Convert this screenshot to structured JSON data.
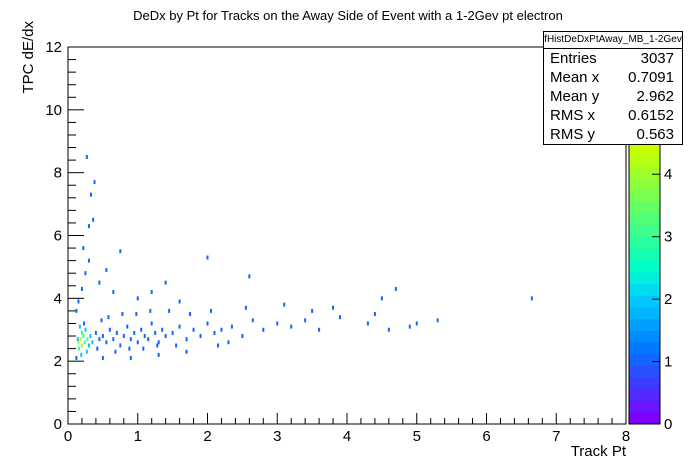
{
  "chart_data": {
    "type": "scatter",
    "title": "DeDx by Pt for Tracks on the Away Side of Event with a 1-2Gev pt electron",
    "xlabel": "Track Pt",
    "ylabel": "TPC dE/dx",
    "xlim": [
      0,
      8
    ],
    "ylim": [
      0,
      12
    ],
    "x_ticks": [
      "0",
      "1",
      "2",
      "3",
      "4",
      "5",
      "6",
      "7",
      "8"
    ],
    "y_ticks": [
      "0",
      "2",
      "4",
      "6",
      "8",
      "10",
      "12"
    ],
    "colorbar": {
      "range": [
        0,
        4.5
      ],
      "ticks": [
        "0",
        "1",
        "2",
        "3",
        "4"
      ],
      "colors": [
        "#7f00ff",
        "#6a14ff",
        "#5528ff",
        "#3c3cff",
        "#2850ff",
        "#1464ff",
        "#0078ff",
        "#008cff",
        "#00a0ff",
        "#00b4ff",
        "#00c8ff",
        "#00dcf0",
        "#00f0dc",
        "#00ffc8",
        "#14ffb4",
        "#28ffa0",
        "#3cff8c",
        "#50ff78",
        "#64ff64",
        "#78ff50",
        "#8cff3c",
        "#a0ff28",
        "#b4ff14",
        "#c8ff00"
      ]
    },
    "stats": {
      "name": "fHistDeDxPtAway_MB_1-2Gev",
      "rows": [
        {
          "label": "Entries",
          "value": "3037"
        },
        {
          "label": "Mean x",
          "value": "0.7091"
        },
        {
          "label": "Mean y",
          "value": "2.962"
        },
        {
          "label": "RMS x",
          "value": "0.6152"
        },
        {
          "label": "RMS y",
          "value": "0.563"
        }
      ]
    },
    "points": [
      [
        0.15,
        2.6,
        4
      ],
      [
        0.18,
        2.7,
        4
      ],
      [
        0.2,
        2.5,
        4
      ],
      [
        0.22,
        2.8,
        3
      ],
      [
        0.24,
        2.6,
        3
      ],
      [
        0.2,
        2.9,
        3
      ],
      [
        0.16,
        2.4,
        3
      ],
      [
        0.28,
        2.7,
        3
      ],
      [
        0.25,
        3.0,
        2
      ],
      [
        0.3,
        2.5,
        2
      ],
      [
        0.19,
        2.2,
        2
      ],
      [
        0.17,
        3.1,
        2
      ],
      [
        0.32,
        2.8,
        2
      ],
      [
        0.35,
        2.6,
        2
      ],
      [
        0.14,
        2.7,
        2
      ],
      [
        0.27,
        2.3,
        2
      ],
      [
        0.23,
        3.2,
        1
      ],
      [
        0.4,
        2.9,
        1
      ],
      [
        0.45,
        2.7,
        1
      ],
      [
        0.5,
        2.8,
        1
      ],
      [
        0.55,
        2.6,
        1
      ],
      [
        0.6,
        3.0,
        1
      ],
      [
        0.65,
        2.7,
        1
      ],
      [
        0.7,
        2.9,
        1
      ],
      [
        0.75,
        2.5,
        1
      ],
      [
        0.8,
        2.8,
        1
      ],
      [
        0.85,
        3.1,
        1
      ],
      [
        0.9,
        2.7,
        1
      ],
      [
        0.95,
        2.9,
        1
      ],
      [
        1.0,
        2.6,
        1
      ],
      [
        1.05,
        3.0,
        1
      ],
      [
        1.1,
        2.8,
        1
      ],
      [
        1.15,
        2.7,
        1
      ],
      [
        1.2,
        3.2,
        1
      ],
      [
        1.25,
        2.9,
        1
      ],
      [
        1.3,
        2.6,
        1
      ],
      [
        1.35,
        3.0,
        1
      ],
      [
        1.4,
        2.8,
        1
      ],
      [
        1.5,
        2.9,
        1
      ],
      [
        1.6,
        3.1,
        1
      ],
      [
        1.7,
        2.7,
        1
      ],
      [
        1.8,
        3.0,
        1
      ],
      [
        1.9,
        2.8,
        1
      ],
      [
        2.0,
        3.2,
        1
      ],
      [
        2.1,
        2.9,
        1
      ],
      [
        2.2,
        3.0,
        1
      ],
      [
        2.35,
        3.1,
        1
      ],
      [
        2.5,
        2.8,
        1
      ],
      [
        2.65,
        3.3,
        1
      ],
      [
        2.8,
        3.0,
        1
      ],
      [
        3.0,
        3.2,
        1
      ],
      [
        3.2,
        3.1,
        1
      ],
      [
        3.4,
        3.3,
        1
      ],
      [
        3.6,
        3.0,
        1
      ],
      [
        3.9,
        3.4,
        1
      ],
      [
        4.3,
        3.2,
        1
      ],
      [
        4.6,
        3.0,
        1
      ],
      [
        4.9,
        3.1,
        1
      ],
      [
        5.3,
        3.3,
        1
      ],
      [
        0.42,
        2.4,
        1
      ],
      [
        0.48,
        3.3,
        1
      ],
      [
        0.58,
        3.4,
        1
      ],
      [
        0.68,
        2.3,
        1
      ],
      [
        0.78,
        3.5,
        1
      ],
      [
        0.88,
        2.4,
        1
      ],
      [
        0.98,
        3.5,
        1
      ],
      [
        1.08,
        2.4,
        1
      ],
      [
        1.18,
        3.6,
        1
      ],
      [
        1.28,
        2.5,
        1
      ],
      [
        1.45,
        3.6,
        1
      ],
      [
        1.55,
        2.5,
        1
      ],
      [
        1.75,
        3.5,
        1
      ],
      [
        2.05,
        3.6,
        1
      ],
      [
        2.3,
        2.6,
        1
      ],
      [
        2.55,
        3.7,
        1
      ],
      [
        0.12,
        3.6,
        1
      ],
      [
        0.15,
        3.9,
        1
      ],
      [
        0.2,
        4.3,
        1
      ],
      [
        0.25,
        4.8,
        1
      ],
      [
        0.3,
        5.2,
        1
      ],
      [
        0.22,
        5.6,
        1
      ],
      [
        0.3,
        6.3,
        1
      ],
      [
        0.38,
        7.7,
        1
      ],
      [
        0.33,
        7.3,
        1
      ],
      [
        0.27,
        8.5,
        1
      ],
      [
        0.36,
        6.5,
        1
      ],
      [
        0.45,
        4.5,
        1
      ],
      [
        0.55,
        4.9,
        1
      ],
      [
        0.65,
        4.2,
        1
      ],
      [
        0.75,
        5.5,
        1
      ],
      [
        1.0,
        4.0,
        1
      ],
      [
        1.2,
        4.2,
        1
      ],
      [
        1.4,
        4.5,
        1
      ],
      [
        1.6,
        3.9,
        1
      ],
      [
        2.0,
        5.3,
        1
      ],
      [
        2.6,
        4.7,
        1
      ],
      [
        3.1,
        3.8,
        1
      ],
      [
        3.5,
        3.6,
        1
      ],
      [
        4.5,
        4.0,
        1
      ],
      [
        4.7,
        4.3,
        1
      ],
      [
        5.0,
        3.2,
        1
      ],
      [
        6.65,
        4.0,
        1
      ],
      [
        4.4,
        3.5,
        1
      ],
      [
        3.8,
        3.7,
        1
      ],
      [
        0.12,
        2.1,
        1
      ],
      [
        0.5,
        2.1,
        1
      ],
      [
        0.9,
        2.1,
        1
      ],
      [
        1.3,
        2.2,
        1
      ],
      [
        1.7,
        2.3,
        1
      ],
      [
        2.15,
        2.5,
        1
      ]
    ]
  }
}
